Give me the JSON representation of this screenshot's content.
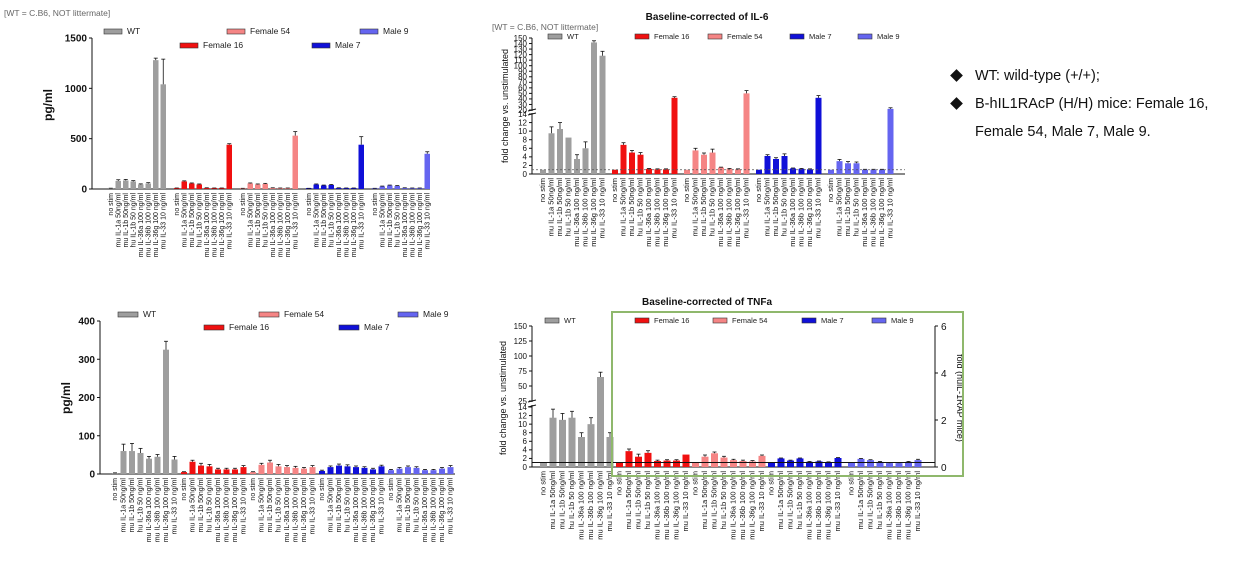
{
  "palette": {
    "WT": "#9e9e9e",
    "Female 16": "#f01010",
    "Female 54": "#f58585",
    "Male 7": "#1010d8",
    "Male 9": "#6565f0"
  },
  "notes": {
    "items": [
      "WT: wild-type (+/+);",
      "B-hIL1RAcP (H/H) mice: Female 16, Female 54, Male 7, Male 9."
    ]
  },
  "chart_data": [
    {
      "type": "bar",
      "caption": "[WT = C.B6, NOT littermate]",
      "title": "",
      "ylabel": "pg/ml",
      "ylim": [
        0,
        1500
      ],
      "yticks": [
        0,
        500,
        1000,
        1500
      ],
      "legend": [
        "WT",
        "Female 16",
        "Female 54",
        "Male 7",
        "Male 9"
      ],
      "groups": [
        {
          "name": "WT",
          "categories": [
            "no stim",
            "mu IL-1a 50ng/ml",
            "mu IL-1b 50ng/ml",
            "hu IL-1b 50 ng/ml",
            "mu IL-36a 100 ng/ml",
            "mu IL-36b 100 ng/ml",
            "mu IL-36g 100 ng/ml",
            "mu IL-33 10 ng/ml"
          ],
          "values": [
            5,
            80,
            85,
            75,
            45,
            55,
            1280,
            1040
          ],
          "errors": [
            3,
            12,
            10,
            8,
            6,
            8,
            20,
            250
          ]
        },
        {
          "name": "Female 16",
          "categories": [
            "no stim",
            "mu IL-1a 50ng/ml",
            "mu IL-1b 50ng/ml",
            "hu IL-1b 50 ng/ml",
            "mu IL-36a 100 ng/ml",
            "mu IL-36b 100 ng/ml",
            "mu IL-36g 100 ng/ml",
            "mu IL-33 10 ng/ml"
          ],
          "values": [
            8,
            75,
            55,
            45,
            10,
            8,
            8,
            440
          ],
          "errors": [
            2,
            6,
            5,
            5,
            2,
            2,
            2,
            10
          ]
        },
        {
          "name": "Female 54",
          "categories": [
            "no stim",
            "mu IL-1a 50ng/ml",
            "mu IL-1b 50ng/ml",
            "hu IL-1b 50 ng/ml",
            "mu IL-36a 100 ng/ml",
            "mu IL-36b 100 ng/ml",
            "mu IL-36g 100 ng/ml",
            "mu IL-33 10 ng/ml"
          ],
          "values": [
            5,
            55,
            45,
            50,
            10,
            8,
            8,
            530
          ],
          "errors": [
            2,
            5,
            5,
            6,
            2,
            2,
            2,
            40
          ]
        },
        {
          "name": "Male 7",
          "categories": [
            "no stim",
            "mu IL-1a 50ng/ml",
            "mu IL-1b 50ng/ml",
            "hu IL-1b 50 ng/ml",
            "mu IL-36a 100 ng/ml",
            "mu IL-36b 100 ng/ml",
            "mu IL-36g 100 ng/ml",
            "mu IL-33 10 ng/ml"
          ],
          "values": [
            5,
            45,
            35,
            40,
            10,
            8,
            8,
            440
          ],
          "errors": [
            2,
            5,
            4,
            5,
            2,
            2,
            2,
            80
          ]
        },
        {
          "name": "Male 9",
          "categories": [
            "no stim",
            "mu IL-1a 50ng/ml",
            "mu IL-1b 50ng/ml",
            "hu IL-1b 50 ng/ml",
            "mu IL-36a 100 ng/ml",
            "mu IL-36b 100 ng/ml",
            "mu IL-36g 100 ng/ml",
            "mu IL-33 10 ng/ml"
          ],
          "values": [
            5,
            25,
            35,
            30,
            10,
            8,
            8,
            350
          ],
          "errors": [
            2,
            4,
            4,
            4,
            2,
            2,
            2,
            20
          ]
        }
      ]
    },
    {
      "type": "bar",
      "caption": "[WT = C.B6, NOT littermate]",
      "title": "Baseline-corrected of IL-6",
      "ylabel": "fold change vs. unstimulated",
      "yscale": "broken",
      "ylim": [
        0,
        150
      ],
      "yticks": [
        0,
        2,
        4,
        6,
        8,
        10,
        12,
        14,
        20,
        30,
        40,
        50,
        60,
        70,
        80,
        90,
        100,
        110,
        120,
        130,
        140,
        150
      ],
      "legend": [
        "WT",
        "Female 16",
        "Female 54",
        "Male 7",
        "Male 9"
      ],
      "groups": [
        {
          "name": "WT",
          "categories": [
            "no stim",
            "mu IL-1a 50ng/ml",
            "mu IL-1b 50ng/ml",
            "hu IL-1b 50 ng/ml",
            "mu IL-36a 100 ng/ml",
            "mu IL-36b 100 ng/ml",
            "mu IL-36g 100 ng/ml",
            "mu IL-33 10 ng/ml"
          ],
          "values": [
            1,
            9.5,
            10.5,
            8.5,
            3.5,
            6,
            142,
            118
          ],
          "errors": [
            0,
            1.5,
            1.5,
            0,
            1,
            1.5,
            3,
            8
          ]
        },
        {
          "name": "Female 16",
          "categories": [
            "no stim",
            "mu IL-1a 50ng/ml",
            "mu IL-1b 50ng/ml",
            "hu IL-1b 50 ng/ml",
            "mu IL-36a 100 ng/ml",
            "mu IL-36b 100 ng/ml",
            "mu IL-36g 100 ng/ml",
            "mu IL-33 10 ng/ml"
          ],
          "values": [
            1,
            6.8,
            5,
            4.5,
            1.2,
            1.1,
            1.1,
            42
          ],
          "errors": [
            0,
            0.5,
            0.5,
            0.5,
            0.1,
            0.1,
            0.1,
            2
          ]
        },
        {
          "name": "Female 54",
          "categories": [
            "no stim",
            "mu IL-1a 50ng/ml",
            "mu IL-1b 50ng/ml",
            "hu IL-1b 50 ng/ml",
            "mu IL-36a 100 ng/ml",
            "mu IL-36b 100 ng/ml",
            "mu IL-36g 100 ng/ml",
            "mu IL-33 10 ng/ml"
          ],
          "values": [
            1,
            5.5,
            4.5,
            5,
            1.5,
            1.2,
            1.1,
            50
          ],
          "errors": [
            0,
            0.5,
            0.4,
            0.8,
            0.1,
            0.1,
            0.1,
            5
          ]
        },
        {
          "name": "Male 7",
          "categories": [
            "no stim",
            "mu IL-1a 50ng/ml",
            "mu IL-1b 50ng/ml",
            "hu IL-1b 50 ng/ml",
            "mu IL-36a 100 ng/ml",
            "mu IL-36b 100 ng/ml",
            "mu IL-36g 100 ng/ml",
            "mu IL-33 10 ng/ml"
          ],
          "values": [
            1,
            4.2,
            3.5,
            4.2,
            1.3,
            1.2,
            1.1,
            42
          ],
          "errors": [
            0,
            0.3,
            0.3,
            0.5,
            0.1,
            0.1,
            0.1,
            4
          ]
        },
        {
          "name": "Male 9",
          "categories": [
            "no stim",
            "mu IL-1a 50ng/ml",
            "mu IL-1b 50ng/ml",
            "hu IL-1b 50 ng/ml",
            "mu IL-36a 100 ng/ml",
            "mu IL-36b 100 ng/ml",
            "mu IL-36g 100 ng/ml",
            "mu IL-33 10 ng/ml"
          ],
          "values": [
            1,
            3,
            2.5,
            2.5,
            1,
            1,
            1,
            22
          ],
          "errors": [
            0,
            0.4,
            0.4,
            0.3,
            0.1,
            0.1,
            0.1,
            2
          ]
        }
      ]
    },
    {
      "type": "bar",
      "caption": "",
      "title": "",
      "ylabel": "pg/ml",
      "ylim": [
        0,
        400
      ],
      "yticks": [
        0,
        100,
        200,
        300,
        400
      ],
      "legend": [
        "WT",
        "Female 16",
        "Female 54",
        "Male 7",
        "Male 9"
      ],
      "groups": [
        {
          "name": "WT",
          "categories": [
            "no stim",
            "mu IL-1a 50ng/ml",
            "mu IL-1b 50ng/ml",
            "hu IL-1b 50 ng/ml",
            "mu IL-36a 100 ng/ml",
            "mu IL-36b 100 ng/ml",
            "mu IL-36g 100 ng/ml",
            "mu IL-33 10 ng/ml"
          ],
          "values": [
            2,
            60,
            60,
            55,
            40,
            45,
            325,
            38
          ],
          "errors": [
            1,
            18,
            20,
            12,
            6,
            6,
            22,
            8
          ]
        },
        {
          "name": "Female 16",
          "categories": [
            "no stim",
            "mu IL-1a 50ng/ml",
            "mu IL-1b 50ng/ml",
            "hu IL-1b 50 ng/ml",
            "mu IL-36a 100 ng/ml",
            "mu IL-36b 100 ng/ml",
            "mu IL-36g 100 ng/ml",
            "mu IL-33 10 ng/ml"
          ],
          "values": [
            5,
            32,
            22,
            20,
            12,
            12,
            12,
            18
          ],
          "errors": [
            1,
            4,
            6,
            5,
            3,
            3,
            3,
            4
          ]
        },
        {
          "name": "Female 54",
          "categories": [
            "no stim",
            "mu IL-1a 50ng/ml",
            "mu IL-1b 50ng/ml",
            "hu IL-1b 50 ng/ml",
            "mu IL-36a 100 ng/ml",
            "mu IL-36b 100 ng/ml",
            "mu IL-36g 100 ng/ml",
            "mu IL-33 10 ng/ml"
          ],
          "values": [
            5,
            24,
            30,
            20,
            18,
            16,
            14,
            18
          ],
          "errors": [
            1,
            4,
            6,
            5,
            4,
            4,
            3,
            4
          ]
        },
        {
          "name": "Male 7",
          "categories": [
            "no stim",
            "mu IL-1a 50ng/ml",
            "mu IL-1b 50ng/ml",
            "hu IL-1b 50 ng/ml",
            "mu IL-36a 100 ng/ml",
            "mu IL-36b 100 ng/ml",
            "mu IL-36g 100 ng/ml",
            "mu IL-33 10 ng/ml"
          ],
          "values": [
            8,
            18,
            22,
            20,
            18,
            16,
            12,
            20
          ],
          "errors": [
            2,
            3,
            4,
            4,
            3,
            3,
            3,
            3
          ]
        },
        {
          "name": "Male 9",
          "categories": [
            "no stim",
            "mu IL-1a 50ng/ml",
            "mu IL-1b 50ng/ml",
            "hu IL-1b 50 ng/ml",
            "mu IL-36a 100 ng/ml",
            "mu IL-36b 100 ng/ml",
            "mu IL-36g 100 ng/ml",
            "mu IL-33 10 ng/ml"
          ],
          "values": [
            10,
            14,
            18,
            16,
            10,
            10,
            14,
            18
          ],
          "errors": [
            2,
            3,
            3,
            3,
            2,
            2,
            3,
            4
          ]
        }
      ]
    },
    {
      "type": "bar",
      "caption": "",
      "title": "Baseline-corrected of TNFa",
      "ylabel": "fold change vs. unstimulated",
      "ylabel_right": "fold (hulL-1RAP mice)",
      "yticks_right": [
        0,
        2,
        4,
        6
      ],
      "yscale": "broken",
      "ylim": [
        0,
        150
      ],
      "yticks": [
        0,
        2,
        4,
        6,
        8,
        10,
        12,
        14,
        25,
        50,
        75,
        100,
        125,
        150
      ],
      "legend": [
        "WT",
        "Female 16",
        "Female 54",
        "Male 7",
        "Male 9"
      ],
      "groups": [
        {
          "name": "WT",
          "categories": [
            "no stim",
            "mu IL-1a 50ng/ml",
            "mu IL-1b 50ng/ml",
            "hu IL-1b 50 ng/ml",
            "mu IL-36a 100 ng/ml",
            "mu IL-36b 100 ng/ml",
            "mu IL-36g 100 ng/ml",
            "mu IL-33 10 ng/ml"
          ],
          "values": [
            1,
            11.5,
            11,
            11.5,
            7,
            10,
            65,
            7
          ],
          "errors": [
            0,
            2,
            1.5,
            1.5,
            1,
            1.5,
            8,
            1
          ]
        },
        {
          "name": "Female 16",
          "categories": [
            "no stim",
            "mu IL-1a 50ng/ml",
            "mu IL-1b 50ng/ml",
            "hu IL-1b 50 ng/ml",
            "mu IL-36a 100 ng/ml",
            "mu IL-36b 100 ng/ml",
            "mu IL-36g 100 ng/ml",
            "mu IL-33 10 ng/ml"
          ],
          "values": [
            1,
            3.7,
            2.4,
            3.3,
            1.4,
            1.5,
            1.5,
            2.9
          ],
          "errors": [
            0,
            0.5,
            0.6,
            0.5,
            0.2,
            0.2,
            0.2,
            0
          ]
        },
        {
          "name": "Female 54",
          "categories": [
            "no stim",
            "mu IL-1a 50ng/ml",
            "mu IL-1b 50ng/ml",
            "hu IL-1b 50 ng/ml",
            "mu IL-36a 100 ng/ml",
            "mu IL-36b 100 ng/ml",
            "mu IL-36g 100 ng/ml",
            "mu IL-33 10 ng/ml"
          ],
          "values": [
            1,
            2.4,
            3.2,
            2.2,
            1.6,
            1.4,
            1.3,
            2.6
          ],
          "errors": [
            0,
            0.4,
            0.3,
            0.3,
            0.2,
            0.2,
            0.2,
            0.2
          ]
        },
        {
          "name": "Male 7",
          "categories": [
            "no stim",
            "mu IL-1a 50ng/ml",
            "mu IL-1b 50ng/ml",
            "hu IL-1b 50 ng/ml",
            "mu IL-36a 100 ng/ml",
            "mu IL-36b 100 ng/ml",
            "mu IL-36g 100 ng/ml",
            "mu IL-33 10 ng/ml"
          ],
          "values": [
            1,
            2,
            1.5,
            2,
            1.2,
            1.3,
            1.1,
            2.1
          ],
          "errors": [
            0,
            0.1,
            0.1,
            0.1,
            0.1,
            0.1,
            0.1,
            0.1
          ]
        },
        {
          "name": "Male 9",
          "categories": [
            "no stim",
            "mu IL-1a 50ng/ml",
            "mu IL-1b 50ng/ml",
            "hu IL-1b 50 ng/ml",
            "mu IL-36a 100 ng/ml",
            "mu IL-36b 100 ng/ml",
            "mu IL-36g 100 ng/ml",
            "mu IL-33 10 ng/ml"
          ],
          "values": [
            1,
            1.9,
            1.6,
            1.2,
            0.9,
            0.9,
            1.2,
            1.6
          ],
          "errors": [
            0,
            0.1,
            0.1,
            0.1,
            0.1,
            0.1,
            0.1,
            0.2
          ]
        }
      ]
    }
  ]
}
